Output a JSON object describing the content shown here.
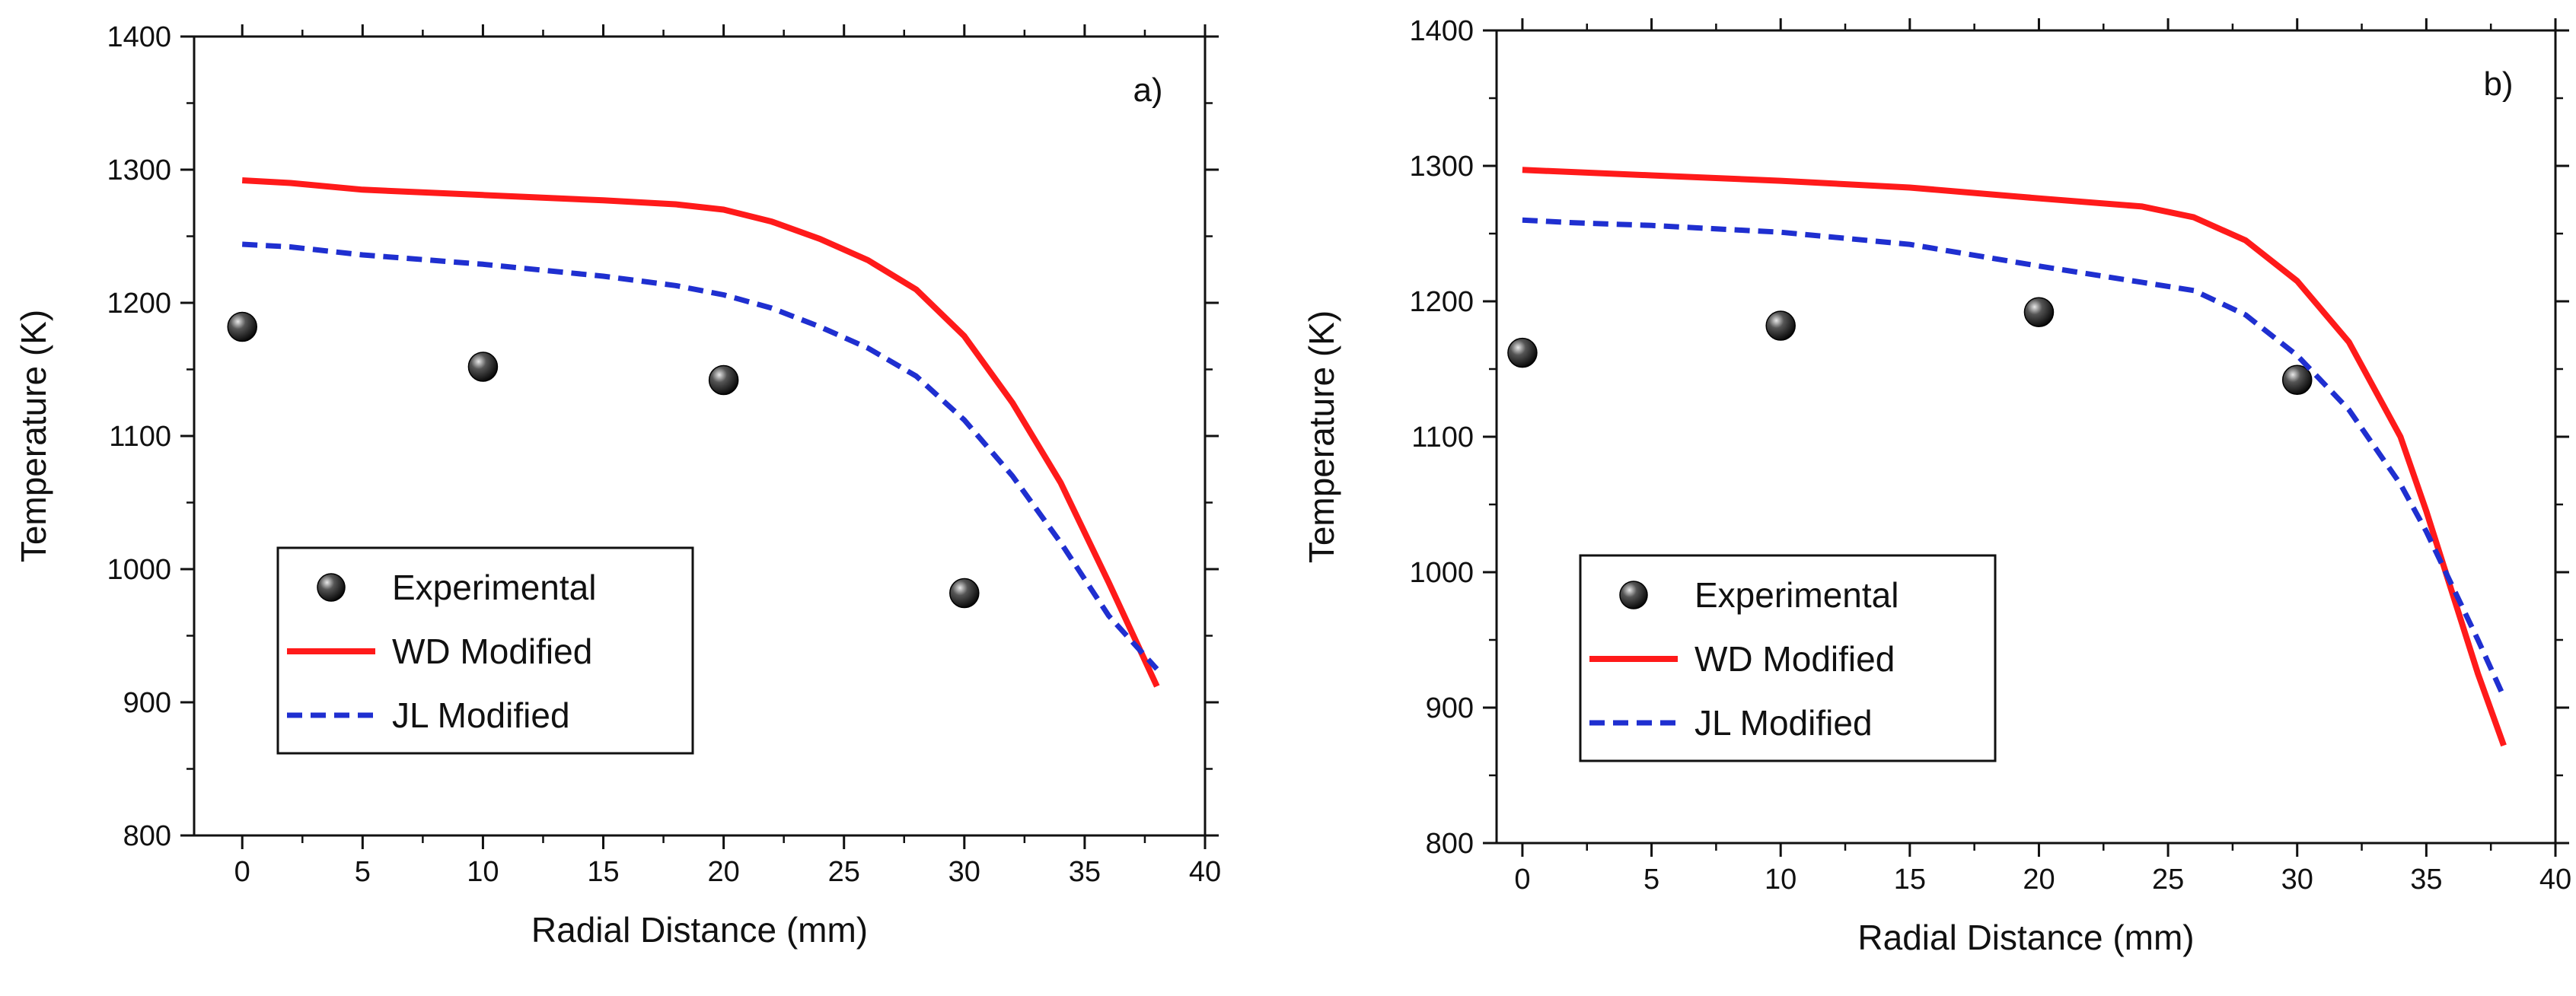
{
  "chart_data": [
    {
      "type": "line",
      "panel_label": "a)",
      "xlabel": "Radial Distance (mm)",
      "ylabel": "Temperature (K)",
      "xlim": [
        -2,
        40
      ],
      "ylim": [
        800,
        1400
      ],
      "xticks": [
        0,
        5,
        10,
        15,
        20,
        25,
        30,
        35,
        40
      ],
      "yticks": [
        800,
        900,
        1000,
        1100,
        1200,
        1300,
        1400
      ],
      "grid": false,
      "legend_position": "bottom-left",
      "series": [
        {
          "name": "Experimental",
          "style": "marker",
          "color": "#111111",
          "x": [
            0,
            10,
            20,
            30
          ],
          "y": [
            1182,
            1152,
            1142,
            982
          ]
        },
        {
          "name": "WD Modified",
          "style": "solid",
          "color": "#ff1a1a",
          "x": [
            0,
            2,
            5,
            10,
            15,
            18,
            20,
            22,
            24,
            26,
            28,
            30,
            32,
            34,
            36,
            38
          ],
          "y": [
            1292,
            1290,
            1285,
            1281,
            1277,
            1274,
            1270,
            1261,
            1248,
            1232,
            1210,
            1175,
            1125,
            1065,
            990,
            912
          ]
        },
        {
          "name": "JL Modified",
          "style": "dashed",
          "color": "#1f2fd0",
          "x": [
            0,
            2,
            5,
            10,
            15,
            18,
            20,
            22,
            24,
            26,
            28,
            30,
            32,
            34,
            36,
            38
          ],
          "y": [
            1244,
            1242,
            1236,
            1229,
            1220,
            1213,
            1206,
            1196,
            1182,
            1166,
            1145,
            1112,
            1070,
            1020,
            965,
            925
          ]
        }
      ]
    },
    {
      "type": "line",
      "panel_label": "b)",
      "xlabel": "Radial Distance (mm)",
      "ylabel": "Temperature (K)",
      "xlim": [
        -1,
        40
      ],
      "ylim": [
        800,
        1400
      ],
      "xticks": [
        0,
        5,
        10,
        15,
        20,
        25,
        30,
        35,
        40
      ],
      "yticks": [
        800,
        900,
        1000,
        1100,
        1200,
        1300,
        1400
      ],
      "grid": false,
      "legend_position": "bottom-left",
      "series": [
        {
          "name": "Experimental",
          "style": "marker",
          "color": "#111111",
          "x": [
            0,
            10,
            20,
            30
          ],
          "y": [
            1162,
            1182,
            1192,
            1142
          ]
        },
        {
          "name": "WD Modified",
          "style": "solid",
          "color": "#ff1a1a",
          "x": [
            0,
            5,
            10,
            15,
            20,
            24,
            26,
            28,
            30,
            32,
            34,
            35,
            36,
            37,
            38
          ],
          "y": [
            1297,
            1293,
            1289,
            1284,
            1276,
            1270,
            1262,
            1245,
            1215,
            1170,
            1100,
            1045,
            985,
            925,
            872
          ]
        },
        {
          "name": "JL Modified",
          "style": "dashed",
          "color": "#1f2fd0",
          "x": [
            0,
            2,
            5,
            10,
            15,
            20,
            24,
            26,
            28,
            30,
            32,
            34,
            35,
            36,
            37,
            38
          ],
          "y": [
            1260,
            1258,
            1256,
            1251,
            1242,
            1226,
            1214,
            1208,
            1190,
            1160,
            1120,
            1065,
            1030,
            990,
            950,
            908
          ]
        }
      ]
    }
  ]
}
